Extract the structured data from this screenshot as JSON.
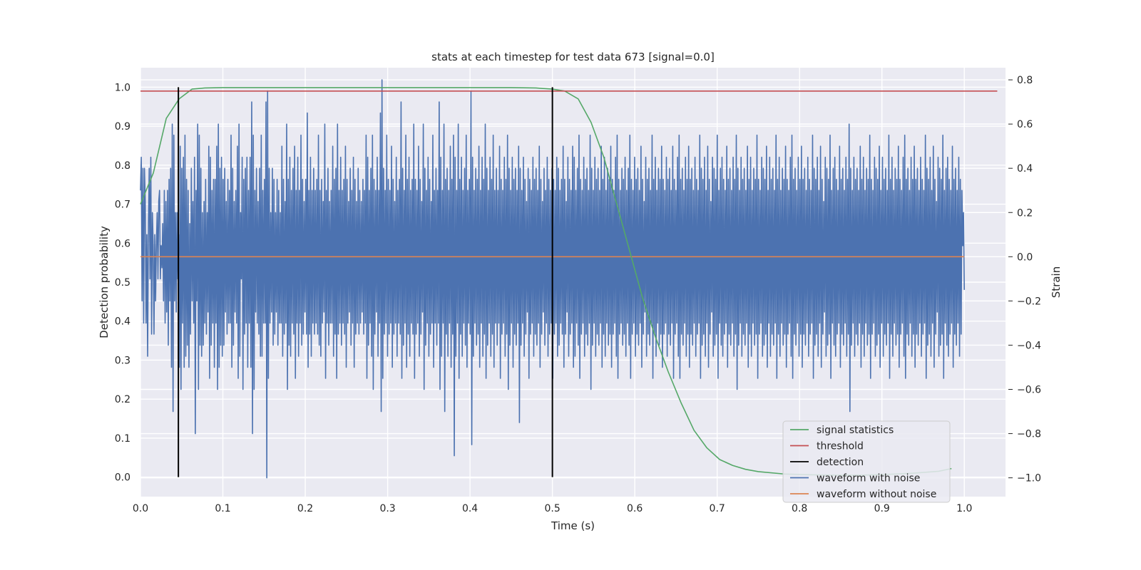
{
  "chart_data": {
    "type": "line",
    "title": "stats at each timestep for test data 673 [signal=0.0]",
    "xlabel": "Time (s)",
    "ylabel_left": "Detection probability",
    "ylabel_right": "Strain",
    "xlim": [
      0.0,
      1.05
    ],
    "ylim_left": [
      -0.05,
      1.05
    ],
    "ylim_right": [
      -1.085,
      0.855
    ],
    "x_ticks": [
      "0.0",
      "0.1",
      "0.2",
      "0.3",
      "0.4",
      "0.5",
      "0.6",
      "0.7",
      "0.8",
      "0.9",
      "1.0"
    ],
    "y_ticks_left": [
      "0.0",
      "0.1",
      "0.2",
      "0.3",
      "0.4",
      "0.5",
      "0.6",
      "0.7",
      "0.8",
      "0.9",
      "1.0"
    ],
    "y_ticks_right": [
      "−1.0",
      "−0.8",
      "−0.6",
      "−0.4",
      "−0.2",
      "0.0",
      "0.2",
      "0.4",
      "0.6",
      "0.8"
    ],
    "grid": true,
    "background": "#eaeaf2",
    "legend_position": "lower-right",
    "legend": [
      {
        "name": "signal statistics",
        "color": "#55a868"
      },
      {
        "name": "threshold",
        "color": "#c44e52"
      },
      {
        "name": "detection",
        "color": "#000000"
      },
      {
        "name": "waveform with noise",
        "color": "#4c72b0"
      },
      {
        "name": "waveform without noise",
        "color": "#dd8452"
      }
    ],
    "signal_statistics": {
      "axis": "left",
      "color": "#55a868",
      "x": [
        0.0,
        0.0156,
        0.0313,
        0.0469,
        0.0625,
        0.0781,
        0.1,
        0.2,
        0.3,
        0.4,
        0.45,
        0.48,
        0.5,
        0.515,
        0.5313,
        0.5469,
        0.5625,
        0.5781,
        0.5938,
        0.6094,
        0.625,
        0.6406,
        0.6563,
        0.6719,
        0.6875,
        0.7031,
        0.7188,
        0.7344,
        0.75,
        0.7813,
        0.8125,
        0.8438,
        0.875,
        0.9063,
        0.9375,
        0.9688,
        0.9844
      ],
      "y": [
        0.7,
        0.78,
        0.92,
        0.97,
        0.995,
        0.998,
        0.999,
        0.999,
        0.999,
        0.999,
        0.999,
        0.998,
        0.995,
        0.99,
        0.97,
        0.91,
        0.82,
        0.7,
        0.58,
        0.46,
        0.36,
        0.27,
        0.19,
        0.12,
        0.075,
        0.045,
        0.03,
        0.02,
        0.014,
        0.008,
        0.006,
        0.005,
        0.005,
        0.007,
        0.01,
        0.015,
        0.022
      ]
    },
    "threshold": {
      "axis": "left",
      "value": 0.99,
      "x_range": [
        0.0,
        1.04
      ],
      "color": "#c44e52"
    },
    "detection": {
      "axis": "left",
      "x": [
        0.046,
        0.5
      ],
      "y_range": [
        0.0,
        1.0
      ],
      "color": "#000000"
    },
    "waveform_without_noise": {
      "axis": "right",
      "value": 0.0,
      "x_range": [
        0.0,
        1.0
      ],
      "color": "#dd8452"
    },
    "waveform_with_noise": {
      "axis": "right",
      "color": "#4c72b0",
      "x_range": [
        0.0,
        1.0
      ],
      "y": [
        0.3,
        0.45,
        -0.2,
        0.4,
        -0.3,
        0.4,
        0.25,
        -0.3,
        0.1,
        -0.45,
        0.15,
        0.4,
        -0.1,
        0.45,
        -0.35,
        0.2,
        0.05,
        -0.35,
        0.1,
        -0.2,
        0.05,
        0.2,
        -0.1,
        0.25,
        0.3,
        -0.1,
        0.05,
        -0.05,
        0.15,
        -0.2,
        0.3,
        -0.3,
        0.25,
        -0.25,
        0.3,
        -0.4,
        0.35,
        -0.2,
        0.4,
        -0.5,
        0.6,
        -0.7,
        0.55,
        -0.2,
        0.2,
        -0.25,
        0.2,
        -0.1,
        0.1,
        -0.5,
        0.5,
        -0.6,
        0.4,
        -0.3,
        0.45,
        -0.5,
        0.55,
        -0.45,
        0.35,
        -0.4,
        0.3,
        -0.5,
        0.15,
        -0.35,
        0.4,
        -0.2,
        0.25,
        -0.3,
        0.45,
        -0.8,
        0.3,
        -0.2,
        0.6,
        -0.6,
        0.55,
        -0.4,
        0.4,
        -0.45,
        0.2,
        -0.4,
        0.25,
        -0.3,
        0.35,
        -0.35,
        0.2,
        -0.25,
        0.5,
        -0.55,
        0.45,
        -0.4,
        0.3,
        -0.3,
        0.35,
        -0.5,
        0.35,
        -0.3,
        0.5,
        -0.6,
        0.6,
        -0.5,
        0.4,
        -0.4,
        0.45,
        -0.45,
        0.35,
        -0.4,
        0.4,
        -0.25,
        0.25,
        -0.35,
        0.35,
        -0.3,
        0.3,
        -0.3,
        0.55,
        -0.5,
        0.4,
        -0.4,
        0.25,
        -0.25,
        0.3,
        -0.3,
        0.5,
        -0.55,
        0.6,
        -0.45,
        0.2,
        -0.1,
        0.45,
        -0.6,
        0.35,
        -0.35,
        0.4,
        -0.3,
        0.45,
        -0.5,
        0.3,
        -0.3,
        0.45,
        -0.5,
        0.7,
        -0.8,
        0.55,
        -0.6,
        0.3,
        -0.25,
        0.4,
        -0.3,
        0.25,
        -0.35,
        0.4,
        -0.45,
        0.55,
        -0.45,
        0.3,
        -0.3,
        0.35,
        -0.3,
        0.7,
        -1.0,
        0.75,
        -0.55,
        0.4,
        -0.3,
        0.2,
        -0.25,
        0.4,
        -0.4,
        0.35,
        -0.35,
        0.2,
        -0.25,
        0.35,
        -0.4,
        0.3,
        -0.3,
        0.2,
        -0.3,
        0.5,
        -0.45,
        0.35,
        -0.35,
        0.25,
        -0.3,
        0.6,
        -0.6,
        0.35,
        -0.4,
        0.45,
        -0.45,
        0.3,
        -0.3,
        0.4,
        -0.35,
        0.5,
        -0.55,
        0.3,
        -0.3,
        0.45,
        -0.45,
        0.3,
        -0.3,
        0.55,
        -0.4,
        0.35,
        -0.35,
        0.25,
        -0.25,
        0.35,
        -0.35,
        0.65,
        -0.5,
        0.3,
        -0.35,
        0.45,
        -0.45,
        0.3,
        -0.3,
        0.4,
        -0.35,
        0.3,
        -0.3,
        0.35,
        -0.35,
        0.55,
        -0.4,
        0.3,
        -0.45,
        0.35,
        -0.3,
        0.25,
        -0.25,
        0.6,
        -0.55,
        0.3,
        -0.3,
        0.4,
        -0.4,
        0.25,
        -0.3,
        0.3,
        -0.3,
        0.5,
        -0.45,
        0.35,
        -0.35,
        0.4,
        -0.55,
        0.6,
        -0.35,
        0.3,
        -0.3,
        0.45,
        -0.4,
        0.3,
        -0.3,
        0.35,
        -0.35,
        0.5,
        -0.5,
        0.35,
        -0.3,
        0.25,
        -0.25,
        0.4,
        -0.4,
        0.3,
        -0.3,
        0.45,
        -0.5,
        0.35,
        -0.35,
        0.25,
        -0.3,
        0.4,
        -0.35,
        0.3,
        -0.3,
        0.25,
        -0.25,
        0.35,
        -0.35,
        0.3,
        -0.3,
        0.55,
        -0.55,
        0.45,
        -0.4,
        0.3,
        -0.3,
        0.4,
        -0.45,
        0.55,
        -0.6,
        0.35,
        -0.35,
        0.3,
        -0.25,
        0.45,
        -0.45,
        0.3,
        -0.3,
        0.65,
        -0.7,
        0.8,
        -0.55,
        0.4,
        -0.35,
        0.3,
        -0.3,
        0.55,
        -0.45,
        0.35,
        -0.35,
        0.3,
        -0.3,
        0.5,
        -0.5,
        0.35,
        -0.35,
        0.25,
        -0.3,
        0.45,
        -0.45,
        0.3,
        -0.3,
        0.35,
        -0.35,
        0.7,
        -0.55,
        0.4,
        -0.4,
        0.3,
        -0.3,
        0.55,
        -0.5,
        0.35,
        -0.35,
        0.45,
        -0.45,
        0.3,
        -0.3,
        0.35,
        -0.35,
        0.6,
        -0.55,
        0.35,
        -0.35,
        0.3,
        -0.3,
        0.5,
        -0.45,
        0.35,
        -0.35,
        0.25,
        -0.25,
        0.6,
        -0.6,
        0.4,
        -0.4,
        0.3,
        -0.3,
        0.45,
        -0.45,
        0.35,
        -0.35,
        0.25,
        -0.3,
        0.55,
        -0.5,
        0.3,
        -0.3,
        0.4,
        -0.4,
        0.3,
        -0.3,
        0.7,
        -0.6,
        0.45,
        -0.45,
        0.3,
        -0.3,
        0.6,
        -0.7,
        0.35,
        -0.35,
        0.4,
        -0.45,
        0.3,
        -0.3,
        0.5,
        -0.5,
        0.35,
        -0.35,
        0.55,
        -0.9,
        0.45,
        -0.45,
        0.3,
        -0.3,
        0.6,
        -0.55,
        0.35,
        -0.35,
        0.45,
        -0.45,
        0.3,
        -0.3,
        0.4,
        -0.4,
        0.55,
        -0.5,
        0.3,
        -0.3,
        0.35,
        -0.35,
        0.75,
        -0.85,
        0.45,
        -0.45,
        0.3,
        -0.3,
        0.4,
        -0.4,
        0.35,
        -0.35,
        0.5,
        -0.5,
        0.3,
        -0.3,
        0.45,
        -0.45,
        0.35,
        -0.35,
        0.6,
        -0.55,
        0.4,
        -0.4,
        0.3,
        -0.3,
        0.45,
        -0.45,
        0.35,
        -0.35,
        0.55,
        -0.5,
        0.3,
        -0.3,
        0.4,
        -0.4,
        0.3,
        -0.3,
        0.5,
        -0.55,
        0.35,
        -0.35,
        0.3,
        -0.3,
        0.45,
        -0.45,
        0.35,
        -0.35,
        0.55,
        -0.6,
        0.4,
        -0.4,
        0.3,
        -0.3,
        0.45,
        -0.5,
        0.35,
        -0.35,
        0.4,
        -0.4,
        0.3,
        -0.3,
        0.5,
        -0.75,
        0.4,
        -0.4,
        0.3,
        -0.3,
        0.45,
        -0.45,
        0.35,
        -0.35,
        0.25,
        -0.25,
        0.4,
        -0.55,
        0.35,
        -0.35,
        0.3,
        -0.3,
        0.45,
        -0.45,
        0.35,
        -0.35,
        0.4,
        -0.4,
        0.3,
        -0.3,
        0.5,
        -0.5,
        0.35,
        -0.35,
        0.25,
        -0.25,
        0.4,
        -0.4,
        0.3,
        -0.3,
        0.45,
        -0.45,
        0.35,
        -0.35,
        0.3,
        -0.3,
        0.4,
        -0.55,
        0.35,
        -0.35,
        0.3,
        -0.3,
        0.45,
        -0.45,
        0.4,
        -0.4,
        0.3,
        -0.3,
        0.35,
        -0.35,
        0.5,
        -0.5,
        0.35,
        -0.35,
        0.25,
        -0.25,
        0.45,
        -0.45,
        0.35,
        -0.35,
        0.3,
        -0.3,
        0.5,
        -0.5,
        0.45,
        -0.45,
        0.3,
        -0.3,
        0.4,
        -0.4,
        0.55,
        -0.55,
        0.35,
        -0.35,
        0.3,
        -0.3,
        0.45,
        -0.45,
        0.35,
        -0.35,
        0.4,
        -0.4,
        0.3,
        -0.3,
        0.55,
        -0.6,
        0.4,
        -0.4,
        0.3,
        -0.3,
        0.45,
        -0.45,
        0.35,
        -0.35,
        0.4,
        -0.4,
        0.3,
        -0.3,
        0.5,
        -0.5,
        0.35,
        -0.35,
        0.45,
        -0.45,
        0.3,
        -0.3,
        0.4,
        -0.4,
        0.35,
        -0.35,
        0.5,
        -0.5,
        0.35,
        -0.35,
        0.3,
        -0.3,
        0.45,
        -0.45,
        0.55,
        -0.55,
        0.35,
        -0.35,
        0.3,
        -0.3,
        0.4,
        -0.4,
        0.35,
        -0.35,
        0.45,
        -0.45,
        0.3,
        -0.3,
        0.4,
        -0.4,
        0.55,
        -0.55,
        0.35,
        -0.35,
        0.3,
        -0.3,
        0.45,
        -0.45,
        0.35,
        -0.35,
        0.4,
        -0.4,
        0.3,
        -0.3,
        0.5,
        -0.5,
        0.35,
        -0.35,
        0.25,
        -0.25,
        0.45,
        -0.45,
        0.35,
        -0.35,
        0.4,
        -0.4,
        0.3,
        -0.3,
        0.55,
        -0.55,
        0.35,
        -0.35,
        0.45,
        -0.45,
        0.3,
        -0.3,
        0.4,
        -0.4,
        0.35,
        -0.35,
        0.5,
        -0.5,
        0.35,
        -0.35,
        0.3,
        -0.3,
        0.45,
        -0.45,
        0.35,
        -0.35,
        0.4,
        -0.4,
        0.3,
        -0.3,
        0.5,
        -0.55,
        0.35,
        -0.35,
        0.3,
        -0.3,
        0.45,
        -0.45,
        0.55,
        -0.55,
        0.35,
        -0.35,
        0.4,
        -0.4,
        0.3,
        -0.3,
        0.45,
        -0.45,
        0.35,
        -0.35,
        0.5,
        -0.5,
        0.35,
        -0.35,
        0.4,
        -0.4,
        0.3,
        -0.3,
        0.45,
        -0.45,
        0.35,
        -0.35,
        0.3,
        -0.3,
        0.55,
        -0.55,
        0.4,
        -0.4,
        0.35,
        -0.35,
        0.45,
        -0.45,
        0.3,
        -0.3,
        0.5,
        -0.5,
        0.35,
        -0.35,
        0.25,
        -0.25,
        0.45,
        -0.45,
        0.4,
        -0.4,
        0.35,
        -0.35,
        0.55,
        -0.55,
        0.3,
        -0.3,
        0.4,
        -0.4,
        0.45,
        -0.45,
        0.35,
        -0.35,
        0.3,
        -0.3,
        0.5,
        -0.5,
        0.35,
        -0.35,
        0.4,
        -0.4,
        0.3,
        -0.3,
        0.45,
        -0.45,
        0.35,
        -0.35,
        0.55,
        -0.6,
        0.4,
        -0.4,
        0.3,
        -0.3,
        0.45,
        -0.45,
        0.35,
        -0.35,
        0.4,
        -0.4,
        0.3,
        -0.3,
        0.5,
        -0.5,
        0.35,
        -0.35,
        0.45,
        -0.45,
        0.3,
        -0.3,
        0.4,
        -0.4,
        0.35,
        -0.35,
        0.55,
        -0.55,
        0.35,
        -0.35,
        0.3,
        -0.3,
        0.45,
        -0.45,
        0.4,
        -0.4,
        0.35,
        -0.35,
        0.5,
        -0.5,
        0.3,
        -0.3,
        0.45,
        -0.45,
        0.35,
        -0.35,
        0.4,
        -0.4,
        0.3,
        -0.3,
        0.55,
        -0.55,
        0.35,
        -0.35,
        0.45,
        -0.45,
        0.3,
        -0.3,
        0.4,
        -0.4,
        0.35,
        -0.35,
        0.5,
        -0.5,
        0.35,
        -0.35,
        0.3,
        -0.3,
        0.45,
        -0.45,
        0.55,
        -0.55,
        0.35,
        -0.35,
        0.4,
        -0.4,
        0.3,
        -0.3,
        0.45,
        -0.45,
        0.35,
        -0.35,
        0.5,
        -0.5,
        0.35,
        -0.35,
        0.4,
        -0.4,
        0.3,
        -0.3,
        0.45,
        -0.45,
        0.35,
        -0.35,
        0.3,
        -0.3,
        0.55,
        -0.55,
        0.4,
        -0.4,
        0.35,
        -0.35,
        0.45,
        -0.45,
        0.3,
        -0.3,
        0.5,
        -0.5,
        0.35,
        -0.35,
        0.25,
        -0.25,
        0.45,
        -0.45,
        0.4,
        -0.4,
        0.35,
        -0.35,
        0.55,
        -0.55,
        0.3,
        -0.3,
        0.4,
        -0.4,
        0.45,
        -0.45,
        0.35,
        -0.35,
        0.3,
        -0.3,
        0.5,
        -0.5,
        0.35,
        -0.35,
        0.4,
        -0.4,
        0.3,
        -0.3,
        0.45,
        -0.45,
        0.35,
        -0.35,
        0.6,
        -0.7,
        0.4,
        -0.4,
        0.3,
        -0.3,
        0.45,
        -0.45,
        0.35,
        -0.35,
        0.4,
        -0.4,
        0.3,
        -0.3,
        0.5,
        -0.5,
        0.35,
        -0.35,
        0.45,
        -0.45,
        0.3,
        -0.3,
        0.4,
        -0.4,
        0.35,
        -0.35,
        0.55,
        -0.55,
        0.35,
        -0.35,
        0.3,
        -0.3,
        0.45,
        -0.45,
        0.4,
        -0.4,
        0.35,
        -0.35,
        0.5,
        -0.5,
        0.3,
        -0.3,
        0.45,
        -0.45,
        0.35,
        -0.35,
        0.4,
        -0.4,
        0.3,
        -0.3,
        0.55,
        -0.55,
        0.35,
        -0.35,
        0.45,
        -0.45,
        0.3,
        -0.3,
        0.4,
        -0.4,
        0.35,
        -0.35,
        0.5,
        -0.5,
        0.35,
        -0.35,
        0.3,
        -0.3,
        0.45,
        -0.45,
        0.55,
        -0.55,
        0.35,
        -0.35,
        0.4,
        -0.4,
        0.3,
        -0.3,
        0.45,
        -0.45,
        0.35,
        -0.35,
        0.5,
        -0.5,
        0.35,
        -0.35,
        0.4,
        -0.4,
        0.3,
        -0.3,
        0.45,
        -0.45,
        0.35,
        -0.35,
        0.3,
        -0.3,
        0.55,
        -0.55,
        0.4,
        -0.4,
        0.35,
        -0.35,
        0.45,
        -0.45,
        0.3,
        -0.3,
        0.5,
        -0.5,
        0.35,
        -0.35,
        0.25,
        -0.25,
        0.45,
        -0.45,
        0.4,
        -0.4,
        0.35,
        -0.35,
        0.55,
        -0.55,
        0.3,
        -0.3,
        0.4,
        -0.4,
        0.45,
        -0.45,
        0.35,
        -0.35,
        0.3,
        -0.3,
        0.5,
        -0.5,
        0.35,
        -0.35,
        0.4,
        -0.4,
        0.3,
        -0.3,
        0.45,
        -0.45,
        0.35,
        -0.35,
        0.3,
        0.05,
        0.2,
        -0.15
      ]
    }
  }
}
